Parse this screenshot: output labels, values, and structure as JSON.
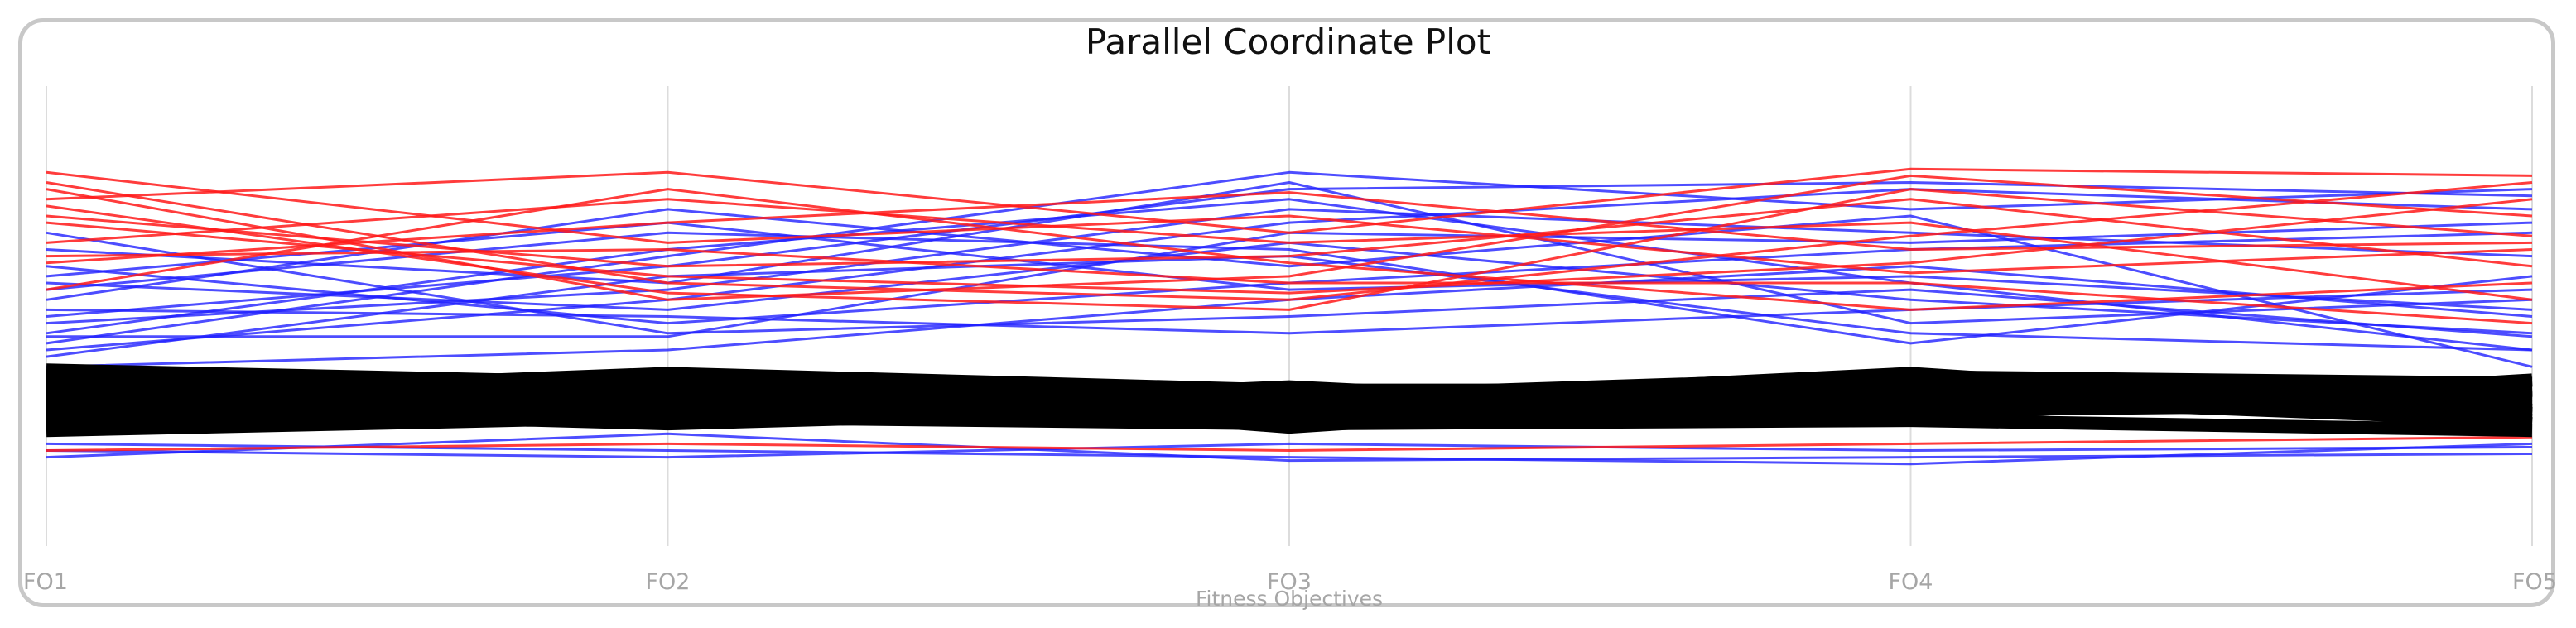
{
  "chart_data": {
    "type": "parallel-coordinates",
    "title": "Parallel Coordinate Plot",
    "xlabel": "Fitness Objectives",
    "ylabel": "",
    "axes": [
      "FO1",
      "FO2",
      "FO3",
      "FO4",
      "FO5"
    ],
    "ylim": [
      0,
      1
    ],
    "grid": false,
    "legend": "none",
    "colors": {
      "high": "#ff1a1a",
      "mid": "#2020ff",
      "dominant": "#000000",
      "axis": "#dcdcdc",
      "label": "#a6a6a6",
      "frame": "#c8c8c8"
    },
    "series": [
      {
        "group": "dominant",
        "values": [
          0.22,
          0.25,
          0.19,
          0.3,
          0.22
        ]
      },
      {
        "group": "dominant",
        "values": [
          0.25,
          0.28,
          0.22,
          0.26,
          0.19
        ]
      },
      {
        "group": "dominant",
        "values": [
          0.28,
          0.22,
          0.25,
          0.24,
          0.25
        ]
      },
      {
        "group": "dominant",
        "values": [
          0.31,
          0.27,
          0.2,
          0.21,
          0.28
        ]
      },
      {
        "group": "dominant",
        "values": [
          0.19,
          0.24,
          0.27,
          0.27,
          0.23
        ]
      },
      {
        "group": "dominant",
        "values": [
          0.34,
          0.3,
          0.26,
          0.32,
          0.3
        ]
      },
      {
        "group": "dominant",
        "values": [
          0.16,
          0.2,
          0.18,
          0.19,
          0.16
        ]
      },
      {
        "group": "dominant",
        "values": [
          0.26,
          0.33,
          0.28,
          0.28,
          0.26
        ]
      },
      {
        "group": "dominant",
        "values": [
          0.23,
          0.18,
          0.23,
          0.23,
          0.29
        ]
      },
      {
        "group": "dominant",
        "values": [
          0.29,
          0.26,
          0.24,
          0.33,
          0.21
        ]
      },
      {
        "group": "dominant",
        "values": [
          0.2,
          0.29,
          0.21,
          0.25,
          0.27
        ]
      },
      {
        "group": "dominant",
        "values": [
          0.32,
          0.23,
          0.27,
          0.22,
          0.24
        ]
      },
      {
        "group": "dominant",
        "values": [
          0.24,
          0.31,
          0.17,
          0.29,
          0.18
        ]
      },
      {
        "group": "dominant",
        "values": [
          0.27,
          0.21,
          0.29,
          0.2,
          0.31
        ]
      },
      {
        "group": "dominant",
        "values": [
          0.18,
          0.27,
          0.24,
          0.31,
          0.25
        ]
      },
      {
        "group": "dominant",
        "values": [
          0.3,
          0.24,
          0.22,
          0.27,
          0.2
        ]
      },
      {
        "group": "mid",
        "values": [
          0.6,
          0.52,
          0.72,
          0.55,
          0.45
        ]
      },
      {
        "group": "mid",
        "values": [
          0.45,
          0.7,
          0.85,
          0.6,
          0.4
        ]
      },
      {
        "group": "mid",
        "values": [
          0.7,
          0.6,
          0.9,
          0.48,
          0.55
        ]
      },
      {
        "group": "mid",
        "values": [
          0.55,
          0.82,
          0.65,
          0.8,
          0.35
        ]
      },
      {
        "group": "mid",
        "values": [
          0.4,
          0.55,
          0.78,
          0.88,
          0.82
        ]
      },
      {
        "group": "mid",
        "values": [
          0.65,
          0.48,
          0.6,
          0.7,
          0.75
        ]
      },
      {
        "group": "mid",
        "values": [
          0.5,
          0.65,
          0.88,
          0.9,
          0.86
        ]
      },
      {
        "group": "mid",
        "values": [
          0.35,
          0.4,
          0.55,
          0.65,
          0.5
        ]
      },
      {
        "group": "mid",
        "values": [
          0.58,
          0.75,
          0.7,
          0.42,
          0.62
        ]
      },
      {
        "group": "mid",
        "values": [
          0.48,
          0.58,
          0.82,
          0.75,
          0.68
        ]
      },
      {
        "group": "mid",
        "values": [
          0.75,
          0.45,
          0.5,
          0.58,
          0.44
        ]
      },
      {
        "group": "mid",
        "values": [
          0.42,
          0.68,
          0.93,
          0.82,
          0.88
        ]
      },
      {
        "group": "mid",
        "values": [
          0.52,
          0.5,
          0.45,
          0.52,
          0.58
        ]
      },
      {
        "group": "mid",
        "values": [
          0.38,
          0.62,
          0.68,
          0.45,
          0.4
        ]
      },
      {
        "group": "mid",
        "values": [
          0.62,
          0.78,
          0.58,
          0.62,
          0.52
        ]
      },
      {
        "group": "mid",
        "values": [
          0.44,
          0.44,
          0.75,
          0.72,
          0.78
        ]
      },
      {
        "group": "mid",
        "values": [
          0.1,
          0.08,
          0.12,
          0.1,
          0.11
        ]
      },
      {
        "group": "mid",
        "values": [
          0.08,
          0.15,
          0.07,
          0.08,
          0.09
        ]
      },
      {
        "group": "mid",
        "values": [
          0.12,
          0.1,
          0.08,
          0.06,
          0.12
        ]
      },
      {
        "group": "high",
        "values": [
          0.93,
          0.72,
          0.8,
          0.63,
          0.7
        ]
      },
      {
        "group": "high",
        "values": [
          0.85,
          0.93,
          0.75,
          0.94,
          0.92
        ]
      },
      {
        "group": "high",
        "values": [
          0.8,
          0.65,
          0.68,
          0.85,
          0.65
        ]
      },
      {
        "group": "high",
        "values": [
          0.72,
          0.85,
          0.72,
          0.78,
          0.55
        ]
      },
      {
        "group": "high",
        "values": [
          0.88,
          0.55,
          0.62,
          0.92,
          0.8
        ]
      },
      {
        "group": "high",
        "values": [
          0.66,
          0.78,
          0.87,
          0.7,
          0.72
        ]
      },
      {
        "group": "high",
        "values": [
          0.78,
          0.62,
          0.57,
          0.66,
          0.85
        ]
      },
      {
        "group": "high",
        "values": [
          0.58,
          0.88,
          0.66,
          0.52,
          0.6
        ]
      },
      {
        "group": "high",
        "values": [
          0.83,
          0.57,
          0.52,
          0.88,
          0.74
        ]
      },
      {
        "group": "high",
        "values": [
          0.68,
          0.7,
          0.6,
          0.6,
          0.48
        ]
      },
      {
        "group": "high",
        "values": [
          0.9,
          0.6,
          0.55,
          0.74,
          0.9
        ]
      },
      {
        "group": "high",
        "values": [
          0.1,
          0.12,
          0.1,
          0.12,
          0.14
        ]
      }
    ]
  }
}
